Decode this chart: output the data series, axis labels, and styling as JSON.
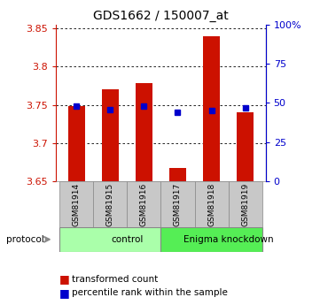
{
  "title": "GDS1662 / 150007_at",
  "samples": [
    "GSM81914",
    "GSM81915",
    "GSM81916",
    "GSM81917",
    "GSM81918",
    "GSM81919"
  ],
  "bar_values": [
    3.748,
    3.77,
    3.778,
    3.668,
    3.84,
    3.74
  ],
  "bar_bottom": 3.65,
  "percentile_pct": [
    48,
    46,
    48,
    44,
    45,
    47
  ],
  "ylim": [
    3.65,
    3.855
  ],
  "yticks": [
    3.65,
    3.7,
    3.75,
    3.8,
    3.85
  ],
  "right_yticks": [
    0,
    25,
    50,
    75,
    100
  ],
  "right_ylim": [
    0,
    100
  ],
  "bar_color": "#CC1100",
  "dot_color": "#0000CC",
  "groups": [
    {
      "label": "control",
      "start": 0,
      "end": 3,
      "color": "#AAFFAA"
    },
    {
      "label": "Enigma knockdown",
      "start": 3,
      "end": 6,
      "color": "#55EE55"
    }
  ],
  "protocol_label": "protocol",
  "legend_bar_label": "transformed count",
  "legend_dot_label": "percentile rank within the sample",
  "left_tick_color": "#CC1100",
  "right_tick_color": "#0000CC",
  "bar_width": 0.5,
  "background_xtick": "#C8C8C8"
}
